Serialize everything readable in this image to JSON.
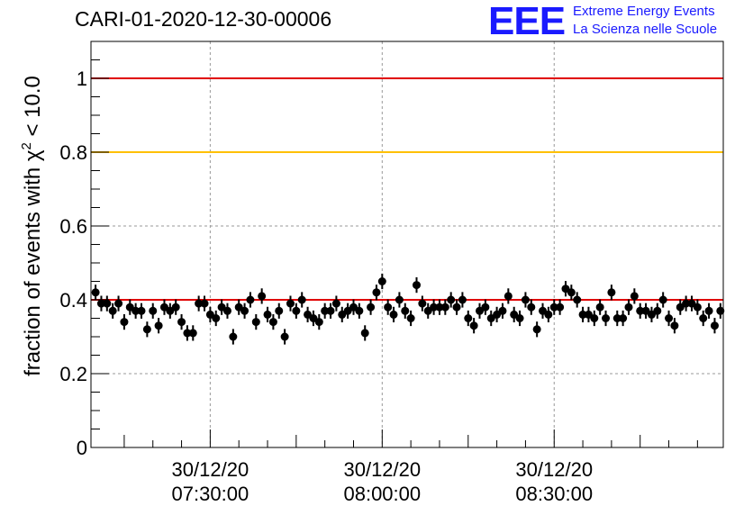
{
  "header": {
    "title": "CARI-01-2020-12-30-00006"
  },
  "logo": {
    "mark": "EEE",
    "line1": "Extreme Energy Events",
    "line2": "La Scienza nelle Scuole"
  },
  "chart_data": {
    "type": "scatter",
    "title": "CARI-01-2020-12-30-00006",
    "xlabel": "",
    "ylabel": "fraction of events with χ² < 10.0",
    "ylabel_parts": {
      "prefix": "fraction of events with ",
      "symbol": "χ",
      "sup": "2",
      "suffix": " < 10.0"
    },
    "x_unit": "minutes after 07:30:00 on 30/12/20",
    "xlim": [
      -20.8,
      89.5
    ],
    "ylim": [
      0,
      1.1
    ],
    "grid": true,
    "y_ticks": [
      0,
      0.2,
      0.4,
      0.6,
      0.8,
      1
    ],
    "y_tick_labels": [
      "0",
      "0.2",
      "0.4",
      "0.6",
      "0.8",
      "1"
    ],
    "x_ticks": [
      0,
      30,
      60
    ],
    "x_tick_labels": [
      {
        "date": "30/12/20",
        "time": "07:30:00"
      },
      {
        "date": "30/12/20",
        "time": "08:00:00"
      },
      {
        "date": "30/12/20",
        "time": "08:30:00"
      }
    ],
    "reference_lines": [
      {
        "y": 1.0,
        "color": "#e00000"
      },
      {
        "y": 0.8,
        "color": "#ffc000"
      },
      {
        "y": 0.4,
        "color": "#e00000"
      }
    ],
    "series": [
      {
        "marker_color": "#000000",
        "error": 0.021,
        "x": [
          -20.0,
          -19.0,
          -18.0,
          -17.0,
          -16.0,
          -15.0,
          -14.0,
          -13.0,
          -12.0,
          -11.0,
          -10.0,
          -9.0,
          -8.0,
          -7.0,
          -6.0,
          -5.0,
          -4.0,
          -3.0,
          -2.0,
          -1.0,
          0.0,
          1.0,
          2.0,
          3.0,
          4.0,
          5.0,
          6.0,
          7.0,
          8.0,
          9.0,
          10.0,
          11.0,
          12.0,
          13.0,
          14.0,
          15.0,
          16.0,
          17.0,
          18.0,
          19.0,
          20.0,
          21.0,
          22.0,
          23.0,
          24.0,
          25.0,
          26.0,
          27.0,
          28.0,
          29.0,
          30.0,
          31.0,
          32.0,
          33.0,
          34.0,
          35.0,
          36.0,
          37.0,
          38.0,
          39.0,
          40.0,
          41.0,
          42.0,
          43.0,
          44.0,
          45.0,
          46.0,
          47.0,
          48.0,
          49.0,
          50.0,
          51.0,
          52.0,
          53.0,
          54.0,
          55.0,
          56.0,
          57.0,
          58.0,
          59.0,
          60.0,
          61.0,
          62.0,
          63.0,
          64.0,
          65.0,
          66.0,
          67.0,
          68.0,
          69.0,
          70.0,
          71.0,
          72.0,
          73.0,
          74.0,
          75.0,
          76.0,
          77.0,
          78.0,
          79.0,
          80.0,
          81.0,
          82.0,
          83.0,
          84.0,
          85.0,
          86.0,
          87.0,
          88.0,
          89.0
        ],
        "y": [
          0.42,
          0.39,
          0.39,
          0.37,
          0.39,
          0.34,
          0.38,
          0.37,
          0.37,
          0.32,
          0.37,
          0.33,
          0.38,
          0.37,
          0.38,
          0.34,
          0.31,
          0.31,
          0.39,
          0.39,
          0.36,
          0.35,
          0.38,
          0.37,
          0.3,
          0.38,
          0.37,
          0.4,
          0.34,
          0.41,
          0.36,
          0.34,
          0.37,
          0.3,
          0.39,
          0.37,
          0.4,
          0.36,
          0.35,
          0.34,
          0.37,
          0.37,
          0.39,
          0.36,
          0.37,
          0.38,
          0.37,
          0.31,
          0.38,
          0.42,
          0.45,
          0.38,
          0.36,
          0.4,
          0.37,
          0.35,
          0.44,
          0.39,
          0.37,
          0.38,
          0.38,
          0.38,
          0.4,
          0.38,
          0.4,
          0.35,
          0.33,
          0.37,
          0.38,
          0.35,
          0.36,
          0.37,
          0.41,
          0.36,
          0.35,
          0.4,
          0.38,
          0.32,
          0.37,
          0.36,
          0.38,
          0.38,
          0.43,
          0.42,
          0.4,
          0.36,
          0.36,
          0.35,
          0.38,
          0.35,
          0.42,
          0.35,
          0.35,
          0.38,
          0.41,
          0.37,
          0.37,
          0.36,
          0.37,
          0.4,
          0.35,
          0.33,
          0.38,
          0.39,
          0.39,
          0.38,
          0.35,
          0.37,
          0.33,
          0.37
        ]
      }
    ]
  }
}
